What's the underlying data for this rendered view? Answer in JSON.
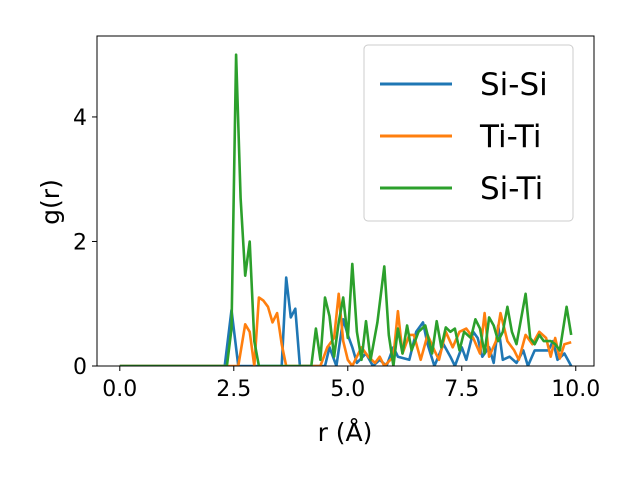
{
  "chart_data": {
    "type": "line",
    "title": "",
    "xlabel": "r (Å)",
    "ylabel": "g(r)",
    "xlim": [
      -0.5,
      10.4
    ],
    "ylim": [
      0,
      5.3
    ],
    "xticks": [
      0.0,
      2.5,
      5.0,
      7.5,
      10.0
    ],
    "xtick_labels": [
      "0.0",
      "2.5",
      "5.0",
      "7.5",
      "10.0"
    ],
    "yticks": [
      0,
      2,
      4
    ],
    "ytick_labels": [
      "0",
      "2",
      "4"
    ],
    "grid": false,
    "legend_position": "top-right",
    "series": [
      {
        "name": "Si-Si",
        "color": "#1f77b4",
        "points": [
          [
            0,
            0
          ],
          [
            2.3,
            0
          ],
          [
            2.45,
            0.9
          ],
          [
            2.6,
            0
          ],
          [
            3.55,
            0
          ],
          [
            3.65,
            1.42
          ],
          [
            3.75,
            0.78
          ],
          [
            3.85,
            0.92
          ],
          [
            3.95,
            0
          ],
          [
            4.5,
            0
          ],
          [
            4.6,
            0.3
          ],
          [
            4.75,
            0
          ],
          [
            4.9,
            0.75
          ],
          [
            5.0,
            0.5
          ],
          [
            5.1,
            0.3
          ],
          [
            5.2,
            0.05
          ],
          [
            5.4,
            0.2
          ],
          [
            5.55,
            0
          ],
          [
            5.7,
            0.1
          ],
          [
            5.85,
            0
          ],
          [
            6.0,
            0.3
          ],
          [
            6.1,
            0.15
          ],
          [
            6.35,
            0.1
          ],
          [
            6.5,
            0.55
          ],
          [
            6.65,
            0.7
          ],
          [
            6.75,
            0.35
          ],
          [
            6.9,
            0
          ],
          [
            7.1,
            0.35
          ],
          [
            7.25,
            0.15
          ],
          [
            7.35,
            0
          ],
          [
            7.5,
            0.3
          ],
          [
            7.6,
            0.1
          ],
          [
            7.75,
            0.55
          ],
          [
            7.85,
            0.45
          ],
          [
            7.95,
            0.15
          ],
          [
            8.1,
            0.3
          ],
          [
            8.2,
            0.05
          ],
          [
            8.3,
            0.65
          ],
          [
            8.4,
            0.1
          ],
          [
            8.55,
            0.15
          ],
          [
            8.7,
            0.05
          ],
          [
            8.85,
            0.25
          ],
          [
            8.95,
            0
          ],
          [
            9.1,
            0.25
          ],
          [
            9.25,
            0.25
          ],
          [
            9.4,
            0.25
          ],
          [
            9.5,
            0.4
          ],
          [
            9.6,
            0.1
          ],
          [
            9.75,
            0.2
          ],
          [
            9.9,
            0
          ]
        ]
      },
      {
        "name": "Ti-Ti",
        "color": "#ff7f0e",
        "points": [
          [
            0,
            0
          ],
          [
            2.6,
            0
          ],
          [
            2.75,
            0.67
          ],
          [
            2.85,
            0.55
          ],
          [
            2.95,
            0
          ],
          [
            3.05,
            1.1
          ],
          [
            3.15,
            1.05
          ],
          [
            3.25,
            0.95
          ],
          [
            3.35,
            0.7
          ],
          [
            3.45,
            0.85
          ],
          [
            3.55,
            0.35
          ],
          [
            3.65,
            0
          ],
          [
            4.4,
            0
          ],
          [
            4.55,
            0.3
          ],
          [
            4.7,
            0.45
          ],
          [
            4.8,
            1.16
          ],
          [
            4.9,
            0.4
          ],
          [
            5.0,
            0.1
          ],
          [
            5.1,
            0
          ],
          [
            5.3,
            0.3
          ],
          [
            5.45,
            0.15
          ],
          [
            5.6,
            0.05
          ],
          [
            5.7,
            0.15
          ],
          [
            5.8,
            0
          ],
          [
            6.0,
            0.15
          ],
          [
            6.1,
            0.88
          ],
          [
            6.2,
            0.2
          ],
          [
            6.35,
            0.5
          ],
          [
            6.45,
            0.5
          ],
          [
            6.6,
            0.1
          ],
          [
            6.75,
            0.5
          ],
          [
            6.9,
            0.25
          ],
          [
            7.0,
            0.1
          ],
          [
            7.15,
            0.55
          ],
          [
            7.3,
            0.3
          ],
          [
            7.45,
            0.55
          ],
          [
            7.6,
            0.6
          ],
          [
            7.75,
            0.45
          ],
          [
            7.9,
            0.2
          ],
          [
            8.0,
            0.85
          ],
          [
            8.1,
            0.15
          ],
          [
            8.25,
            0.4
          ],
          [
            8.35,
            0.85
          ],
          [
            8.5,
            0.4
          ],
          [
            8.65,
            0.25
          ],
          [
            8.75,
            0.1
          ],
          [
            8.9,
            0.5
          ],
          [
            9.05,
            0.35
          ],
          [
            9.2,
            0.55
          ],
          [
            9.35,
            0.45
          ],
          [
            9.45,
            0.15
          ],
          [
            9.55,
            0.45
          ],
          [
            9.65,
            0.12
          ],
          [
            9.75,
            0.35
          ],
          [
            9.9,
            0.38
          ]
        ]
      },
      {
        "name": "Si-Ti",
        "color": "#2ca02c",
        "points": [
          [
            0,
            0
          ],
          [
            2.35,
            0
          ],
          [
            2.45,
            0.6
          ],
          [
            2.55,
            5.0
          ],
          [
            2.65,
            2.7
          ],
          [
            2.75,
            1.45
          ],
          [
            2.85,
            2.0
          ],
          [
            2.95,
            0.4
          ],
          [
            3.05,
            0
          ],
          [
            4.2,
            0
          ],
          [
            4.3,
            0.6
          ],
          [
            4.4,
            0.1
          ],
          [
            4.5,
            1.1
          ],
          [
            4.6,
            0.8
          ],
          [
            4.7,
            0.15
          ],
          [
            4.8,
            0.7
          ],
          [
            4.9,
            1.1
          ],
          [
            5.0,
            0.45
          ],
          [
            5.1,
            1.64
          ],
          [
            5.2,
            0.55
          ],
          [
            5.3,
            0.1
          ],
          [
            5.4,
            0.72
          ],
          [
            5.5,
            0.1
          ],
          [
            5.65,
            0.7
          ],
          [
            5.8,
            1.6
          ],
          [
            5.9,
            0.5
          ],
          [
            6.0,
            0
          ],
          [
            6.1,
            0.6
          ],
          [
            6.2,
            0.2
          ],
          [
            6.3,
            0.65
          ],
          [
            6.4,
            0.25
          ],
          [
            6.55,
            0.55
          ],
          [
            6.7,
            0.65
          ],
          [
            6.85,
            0.2
          ],
          [
            6.95,
            0.72
          ],
          [
            7.05,
            0.3
          ],
          [
            7.15,
            0.62
          ],
          [
            7.25,
            0.55
          ],
          [
            7.35,
            0.6
          ],
          [
            7.45,
            0.25
          ],
          [
            7.55,
            0.55
          ],
          [
            7.7,
            0.45
          ],
          [
            7.8,
            0.75
          ],
          [
            7.9,
            0.6
          ],
          [
            8.0,
            0.2
          ],
          [
            8.1,
            0.78
          ],
          [
            8.2,
            0.65
          ],
          [
            8.3,
            0.4
          ],
          [
            8.4,
            0.55
          ],
          [
            8.5,
            0.95
          ],
          [
            8.6,
            0.55
          ],
          [
            8.7,
            0.35
          ],
          [
            8.8,
            0.75
          ],
          [
            8.9,
            1.16
          ],
          [
            9.0,
            0.45
          ],
          [
            9.1,
            0.35
          ],
          [
            9.2,
            0.5
          ],
          [
            9.3,
            0.4
          ],
          [
            9.45,
            0.4
          ],
          [
            9.55,
            0.35
          ],
          [
            9.65,
            0.25
          ],
          [
            9.8,
            0.95
          ],
          [
            9.9,
            0.5
          ]
        ]
      }
    ]
  }
}
